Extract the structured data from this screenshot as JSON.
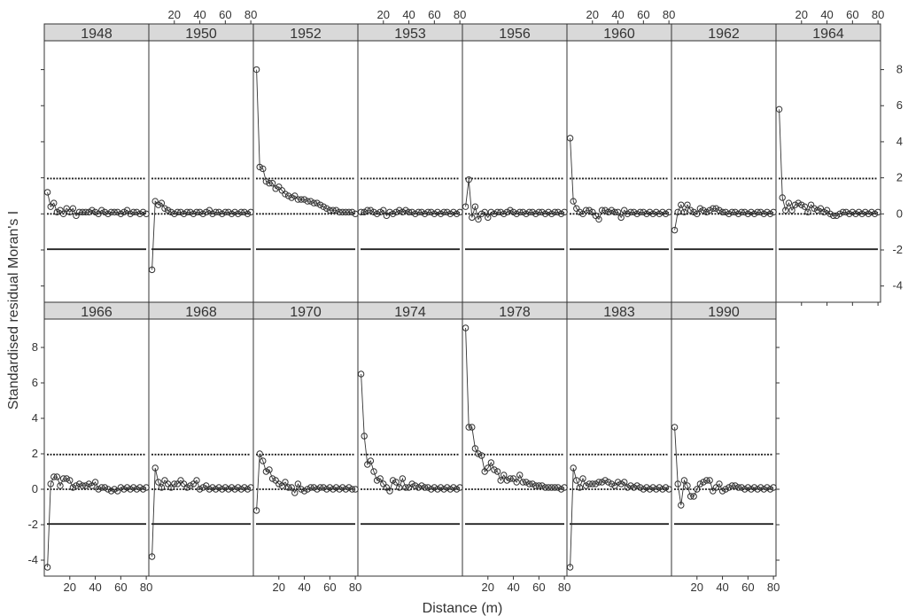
{
  "chart_data": {
    "type": "line",
    "layout": "trellis",
    "xlabel": "Distance (m)",
    "ylabel": "Standardised residual Moran's I",
    "xlim": [
      0,
      82
    ],
    "ylim": [
      -4.9,
      9.6
    ],
    "x_ticks": [
      20,
      40,
      60,
      80
    ],
    "x_tick_labels": [
      "20",
      "40",
      "60",
      "80"
    ],
    "y_ticks": [
      -4,
      -2,
      0,
      2,
      4,
      6,
      8
    ],
    "y_tick_labels": [
      "-4",
      "-2",
      "0",
      "2",
      "4",
      "6",
      "8"
    ],
    "reference_lines": [
      {
        "y": 1.96,
        "style": "dotted"
      },
      {
        "y": 0,
        "style": "dotted"
      },
      {
        "y": -1.96,
        "style": "solid"
      }
    ],
    "x": [
      2.5,
      5,
      7.5,
      10,
      12.5,
      15,
      17.5,
      20,
      22.5,
      25,
      27.5,
      30,
      32.5,
      35,
      37.5,
      40,
      42.5,
      45,
      47.5,
      50,
      52.5,
      55,
      57.5,
      60,
      62.5,
      65,
      67.5,
      70,
      72.5,
      75,
      77.5,
      80
    ],
    "series": [
      {
        "name": "1948",
        "values": [
          1.2,
          0.4,
          0.6,
          0.1,
          0.2,
          0.0,
          0.3,
          0.1,
          0.3,
          -0.1,
          0.1,
          0.1,
          0.1,
          0.1,
          0.2,
          0.1,
          0.0,
          0.2,
          0.1,
          0.0,
          0.1,
          0.1,
          0.1,
          0.0,
          0.1,
          0.2,
          0.0,
          0.1,
          0.1,
          0.0,
          0.1,
          0.0
        ]
      },
      {
        "name": "1950",
        "values": [
          -3.1,
          0.7,
          0.5,
          0.6,
          0.3,
          0.2,
          0.1,
          0.0,
          0.1,
          0.1,
          0.0,
          0.1,
          0.1,
          0.0,
          0.1,
          0.1,
          0.0,
          0.1,
          0.2,
          0.0,
          0.1,
          0.1,
          0.0,
          0.1,
          0.1,
          0.0,
          0.1,
          0.0,
          0.1,
          0.1,
          0.0,
          0.1
        ]
      },
      {
        "name": "1952",
        "values": [
          8.0,
          2.6,
          2.5,
          1.8,
          1.7,
          1.7,
          1.4,
          1.5,
          1.3,
          1.1,
          1.0,
          0.9,
          1.0,
          0.8,
          0.8,
          0.8,
          0.7,
          0.7,
          0.6,
          0.6,
          0.5,
          0.4,
          0.3,
          0.2,
          0.2,
          0.2,
          0.1,
          0.1,
          0.1,
          0.1,
          0.1,
          0.0
        ]
      },
      {
        "name": "1953",
        "values": [
          0.1,
          0.1,
          0.2,
          0.2,
          0.1,
          0.0,
          0.1,
          0.2,
          -0.1,
          0.1,
          0.0,
          0.1,
          0.2,
          0.1,
          0.2,
          0.1,
          0.1,
          0.0,
          0.1,
          0.1,
          0.0,
          0.1,
          0.1,
          0.0,
          0.1,
          0.0,
          0.1,
          0.1,
          0.0,
          0.1,
          0.0,
          0.1
        ]
      },
      {
        "name": "1956",
        "values": [
          0.4,
          1.9,
          -0.2,
          0.4,
          -0.3,
          0.0,
          0.1,
          -0.2,
          0.1,
          0.0,
          0.1,
          0.1,
          0.0,
          0.1,
          0.2,
          0.1,
          0.0,
          0.1,
          0.1,
          0.0,
          0.1,
          0.1,
          0.0,
          0.1,
          0.1,
          0.0,
          0.1,
          0.0,
          0.1,
          0.1,
          0.0,
          0.1
        ]
      },
      {
        "name": "1960",
        "values": [
          4.2,
          0.7,
          0.3,
          0.1,
          0.0,
          0.2,
          0.2,
          0.1,
          -0.1,
          -0.3,
          0.2,
          0.2,
          0.1,
          0.2,
          0.1,
          0.1,
          -0.2,
          0.2,
          0.0,
          0.1,
          0.1,
          0.0,
          0.1,
          0.1,
          0.0,
          0.1,
          0.0,
          0.1,
          0.0,
          0.1,
          0.0,
          0.1
        ]
      },
      {
        "name": "1962",
        "values": [
          -0.9,
          0.1,
          0.5,
          0.1,
          0.5,
          0.2,
          0.1,
          0.0,
          0.3,
          0.2,
          0.1,
          0.2,
          0.3,
          0.3,
          0.2,
          0.1,
          0.1,
          0.0,
          0.1,
          0.1,
          0.0,
          0.1,
          0.1,
          0.0,
          0.1,
          0.0,
          0.1,
          0.1,
          0.0,
          0.1,
          0.0,
          0.1
        ]
      },
      {
        "name": "1964",
        "values": [
          5.8,
          0.9,
          0.2,
          0.6,
          0.2,
          0.5,
          0.6,
          0.5,
          0.4,
          0.1,
          0.5,
          0.3,
          0.2,
          0.3,
          0.1,
          0.2,
          0.0,
          -0.1,
          -0.1,
          0.0,
          0.1,
          0.1,
          0.0,
          0.1,
          0.0,
          0.1,
          0.0,
          0.1,
          0.0,
          0.1,
          0.0,
          0.1
        ]
      },
      {
        "name": "1966",
        "values": [
          -4.4,
          0.3,
          0.7,
          0.7,
          0.2,
          0.6,
          0.6,
          0.5,
          0.1,
          0.2,
          0.3,
          0.2,
          0.2,
          0.3,
          0.2,
          0.4,
          0.0,
          0.1,
          0.1,
          0.0,
          -0.1,
          0.0,
          -0.1,
          0.1,
          0.0,
          0.1,
          0.0,
          0.1,
          0.0,
          0.1,
          0.0,
          0.1
        ]
      },
      {
        "name": "1968",
        "values": [
          -3.8,
          1.2,
          0.4,
          0.1,
          0.5,
          0.3,
          0.1,
          0.3,
          0.3,
          0.5,
          0.3,
          0.1,
          0.2,
          0.3,
          0.5,
          0.0,
          0.1,
          0.2,
          0.0,
          0.1,
          0.0,
          0.1,
          0.0,
          0.1,
          0.0,
          0.1,
          0.0,
          0.1,
          0.0,
          0.1,
          0.0,
          0.1
        ]
      },
      {
        "name": "1970",
        "values": [
          -1.2,
          2.0,
          1.6,
          1.0,
          1.1,
          0.6,
          0.5,
          0.3,
          0.2,
          0.4,
          0.1,
          0.1,
          -0.2,
          0.3,
          0.0,
          -0.1,
          0.0,
          0.1,
          0.1,
          0.0,
          0.1,
          0.1,
          0.0,
          0.1,
          0.0,
          0.1,
          0.0,
          0.1,
          0.0,
          0.1,
          0.0,
          0.0
        ]
      },
      {
        "name": "1974",
        "values": [
          6.5,
          3.0,
          1.4,
          1.6,
          1.0,
          0.5,
          0.6,
          0.3,
          0.1,
          -0.1,
          0.5,
          0.4,
          0.1,
          0.6,
          0.1,
          0.1,
          0.3,
          0.2,
          0.1,
          0.2,
          0.1,
          0.1,
          0.0,
          0.1,
          0.0,
          0.1,
          0.0,
          0.1,
          0.0,
          0.1,
          0.0,
          0.1
        ]
      },
      {
        "name": "1978",
        "values": [
          9.1,
          3.5,
          3.5,
          2.3,
          2.0,
          1.9,
          1.0,
          1.2,
          1.5,
          1.1,
          1.0,
          0.5,
          0.8,
          0.5,
          0.6,
          0.6,
          0.4,
          0.8,
          0.4,
          0.4,
          0.3,
          0.3,
          0.2,
          0.2,
          0.2,
          0.1,
          0.1,
          0.1,
          0.1,
          0.1,
          0.0,
          0.1
        ]
      },
      {
        "name": "1983",
        "values": [
          -4.4,
          1.2,
          0.5,
          0.1,
          0.6,
          0.2,
          0.3,
          0.3,
          0.3,
          0.4,
          0.4,
          0.5,
          0.4,
          0.3,
          0.2,
          0.4,
          0.3,
          0.4,
          0.1,
          0.2,
          0.1,
          0.2,
          0.1,
          0.0,
          0.1,
          0.0,
          0.1,
          0.0,
          0.1,
          0.0,
          0.1,
          0.0
        ]
      },
      {
        "name": "1990",
        "values": [
          3.5,
          0.3,
          -0.9,
          0.5,
          0.2,
          -0.4,
          -0.4,
          0.0,
          0.3,
          0.4,
          0.5,
          0.5,
          -0.1,
          0.1,
          0.3,
          -0.1,
          0.0,
          0.1,
          0.2,
          0.2,
          0.1,
          0.1,
          0.0,
          0.1,
          0.0,
          0.1,
          0.0,
          0.1,
          0.0,
          0.1,
          0.0,
          0.1
        ]
      }
    ]
  }
}
